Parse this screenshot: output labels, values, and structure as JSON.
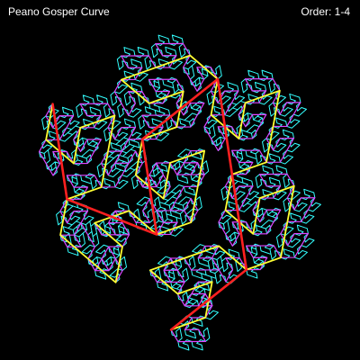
{
  "title": "Peano Gosper Curve",
  "order_label": "Order: 1-4",
  "orders": [
    1,
    2,
    3,
    4
  ],
  "colors": {
    "background": "#000000",
    "text": "#ffffff",
    "order_1": "#ff2020",
    "order_2": "#ffff33",
    "order_3": "#dd44ff",
    "order_4": "#33ffff"
  }
}
